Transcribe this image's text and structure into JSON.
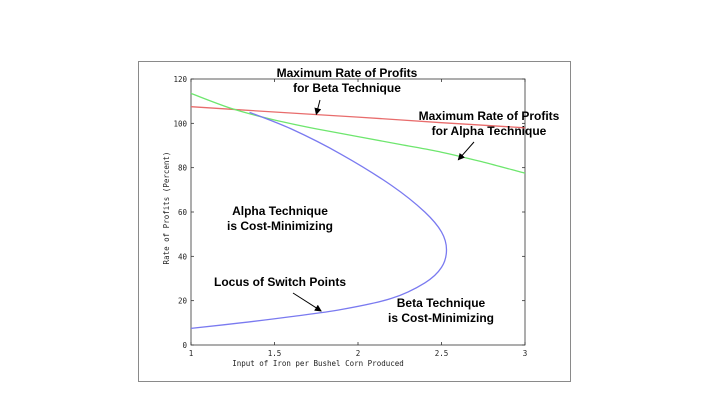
{
  "chart_data": {
    "type": "line",
    "title": "",
    "xlabel": "Input of Iron per Bushel Corn Produced",
    "ylabel": "Rate of Profits (Percent)",
    "xlim": [
      1,
      3
    ],
    "ylim": [
      0,
      120
    ],
    "x_ticks": [
      "1",
      "1.5",
      "2",
      "2.5",
      "3"
    ],
    "y_ticks": [
      "0",
      "20",
      "40",
      "60",
      "80",
      "100",
      "120"
    ],
    "grid": false,
    "legend": "none",
    "series": [
      {
        "color": "#e86c6c",
        "points": [
          [
            1,
            107.5
          ],
          [
            1.5,
            105.1
          ],
          [
            2,
            102.8
          ],
          [
            2.5,
            100.3
          ],
          [
            3,
            98.0
          ]
        ]
      },
      {
        "color": "#6ee66e",
        "points": [
          [
            1,
            113.5
          ],
          [
            1.25,
            106.5
          ],
          [
            1.5,
            101.5
          ],
          [
            1.75,
            97.5
          ],
          [
            2,
            94.0
          ],
          [
            2.25,
            90.5
          ],
          [
            2.5,
            87.0
          ],
          [
            2.75,
            82.5
          ],
          [
            3,
            77.5
          ]
        ]
      },
      {
        "color": "#7a7af0",
        "points": [
          [
            1.35,
            105.0
          ],
          [
            1.6,
            97.5
          ],
          [
            1.9,
            86.0
          ],
          [
            2.2,
            72.0
          ],
          [
            2.4,
            60.0
          ],
          [
            2.5,
            51.0
          ],
          [
            2.53,
            43.0
          ],
          [
            2.5,
            35.0
          ],
          [
            2.4,
            28.0
          ],
          [
            2.2,
            21.0
          ],
          [
            1.9,
            16.0
          ],
          [
            1.6,
            12.8
          ],
          [
            1.3,
            10.0
          ],
          [
            1,
            7.5
          ]
        ]
      }
    ],
    "annotations": [
      {
        "lines": [
          "Maximum Rate of Profits",
          "for Beta Technique"
        ],
        "arrow_to": [
          1.75,
          104.0
        ]
      },
      {
        "lines": [
          "Maximum Rate of Profits",
          "for Alpha Technique"
        ],
        "arrow_to": [
          2.6,
          83.5
        ]
      },
      {
        "lines": [
          "Alpha Technique",
          "is Cost-Minimizing"
        ],
        "arrow_to": null
      },
      {
        "lines": [
          "Locus of Switch Points"
        ],
        "arrow_to": [
          1.78,
          15.3
        ]
      },
      {
        "lines": [
          "Beta Technique",
          "is Cost-Minimizing"
        ],
        "arrow_to": null
      }
    ]
  }
}
